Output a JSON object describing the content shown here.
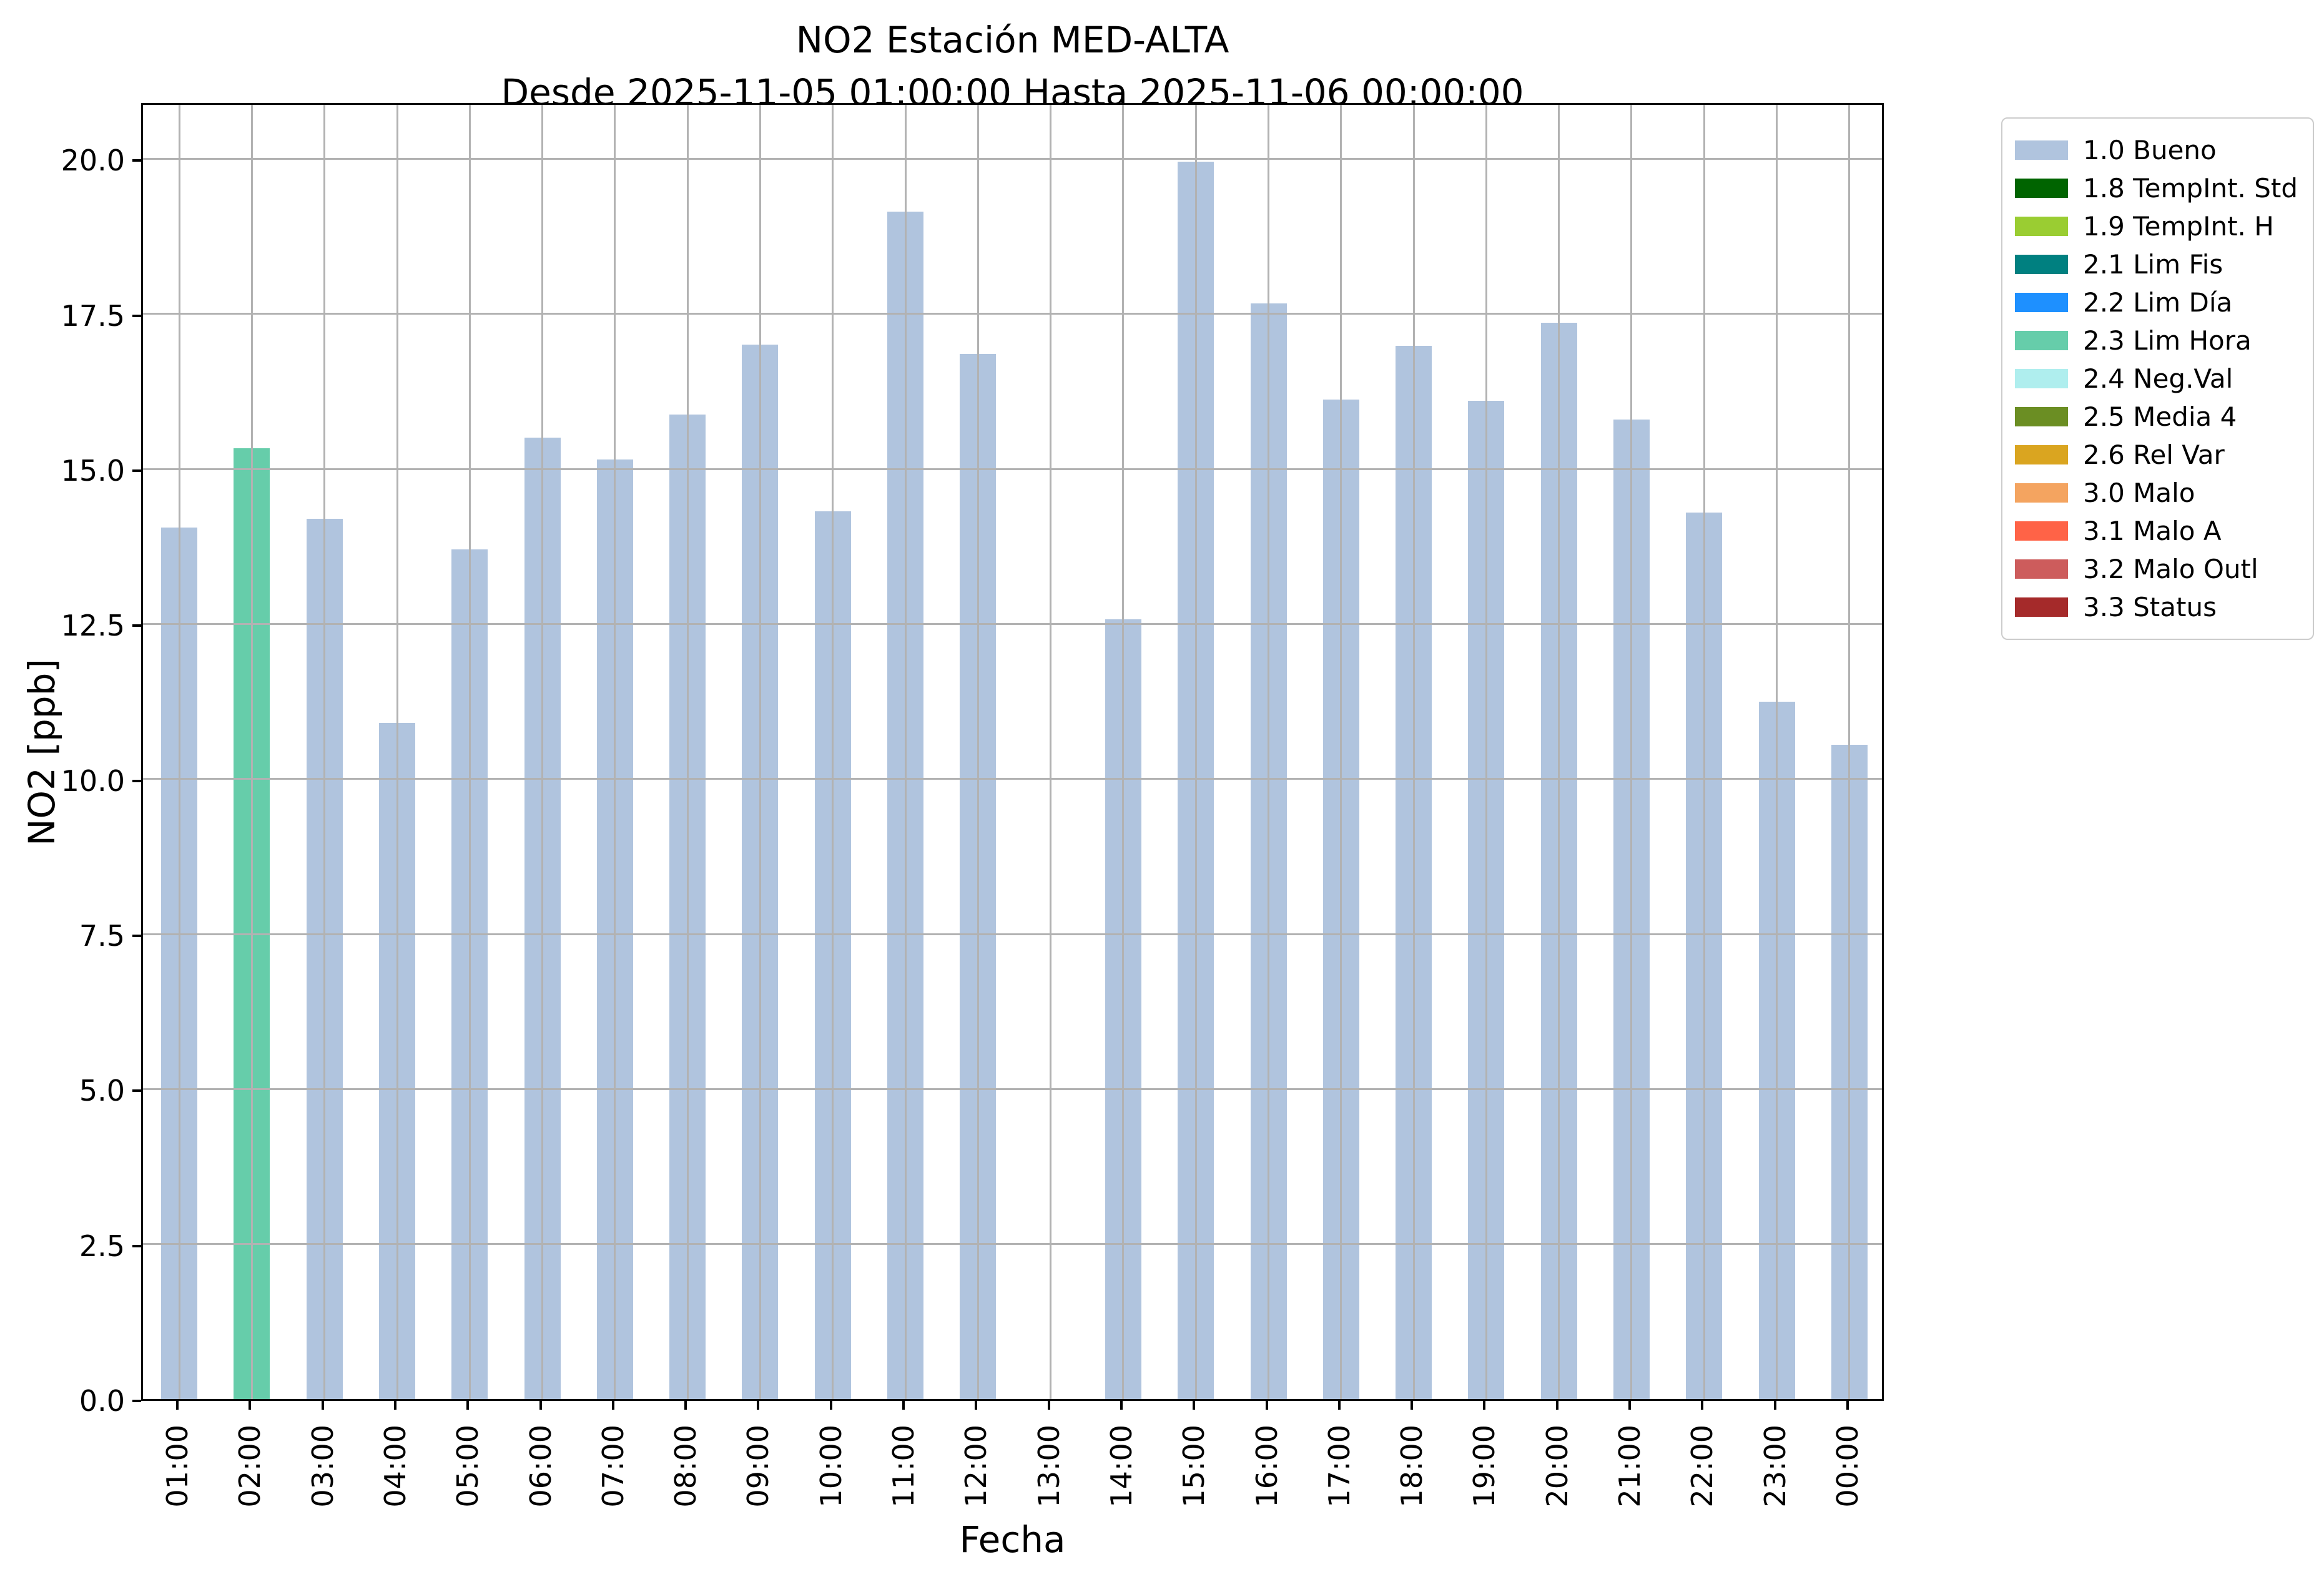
{
  "figure": {
    "title": "NO2 Estación MED-ALTA",
    "subtitle": "Desde 2025-11-05 01:00:00 Hasta 2025-11-06 00:00:00"
  },
  "axes": {
    "xlabel": "Fecha",
    "ylabel": "NO2 [ppb]",
    "ytick_labels": [
      "0.0",
      "2.5",
      "5.0",
      "7.5",
      "10.0",
      "12.5",
      "15.0",
      "17.5",
      "20.0"
    ]
  },
  "chart_data": {
    "type": "bar",
    "title": "NO2 Estación MED-ALTA",
    "subtitle": "Desde 2025-11-05 01:00:00 Hasta 2025-11-06 00:00:00",
    "xlabel": "Fecha",
    "ylabel": "NO2 [ppb]",
    "categories": [
      "01:00",
      "02:00",
      "03:00",
      "04:00",
      "05:00",
      "06:00",
      "07:00",
      "08:00",
      "09:00",
      "10:00",
      "11:00",
      "12:00",
      "13:00",
      "14:00",
      "15:00",
      "16:00",
      "17:00",
      "18:00",
      "19:00",
      "20:00",
      "21:00",
      "22:00",
      "23:00",
      "00:00"
    ],
    "values": [
      14.05,
      15.33,
      14.2,
      10.9,
      13.7,
      15.5,
      15.15,
      15.88,
      17.0,
      14.32,
      19.15,
      16.85,
      null,
      12.57,
      19.95,
      17.67,
      16.12,
      16.98,
      16.1,
      17.36,
      15.8,
      14.3,
      11.25,
      10.55
    ],
    "statuses": [
      "1.0",
      "2.3",
      "1.0",
      "1.0",
      "1.0",
      "1.0",
      "1.0",
      "1.0",
      "1.0",
      "1.0",
      "1.0",
      "1.0",
      null,
      "1.0",
      "1.0",
      "1.0",
      "1.0",
      "1.0",
      "1.0",
      "1.0",
      "1.0",
      "1.0",
      "1.0",
      "1.0"
    ],
    "yticks": [
      0,
      2.5,
      5.0,
      7.5,
      10.0,
      12.5,
      15.0,
      17.5,
      20.0
    ],
    "ylim": [
      0,
      20.93
    ],
    "bar_width_fraction": 0.5,
    "grid": true,
    "legend_position": "outside right"
  },
  "legend": {
    "items": [
      {
        "code": "1.0",
        "label": "1.0 Bueno",
        "color": "#b0c4de"
      },
      {
        "code": "1.8",
        "label": "1.8 TempInt. Std",
        "color": "#006400"
      },
      {
        "code": "1.9",
        "label": "1.9 TempInt. H",
        "color": "#9acd32"
      },
      {
        "code": "2.1",
        "label": "2.1 Lim Fis",
        "color": "#008080"
      },
      {
        "code": "2.2",
        "label": "2.2 Lim Día",
        "color": "#1e90ff"
      },
      {
        "code": "2.3",
        "label": "2.3 Lim Hora",
        "color": "#66cdaa"
      },
      {
        "code": "2.4",
        "label": "2.4 Neg.Val",
        "color": "#afeeee"
      },
      {
        "code": "2.5",
        "label": "2.5 Media 4",
        "color": "#6b8e23"
      },
      {
        "code": "2.6",
        "label": "2.6 Rel Var",
        "color": "#daa520"
      },
      {
        "code": "3.0",
        "label": "3.0 Malo",
        "color": "#f4a460"
      },
      {
        "code": "3.1",
        "label": "3.1 Malo A",
        "color": "#ff6347"
      },
      {
        "code": "3.2",
        "label": "3.2 Malo Outl",
        "color": "#cd5c5c"
      },
      {
        "code": "3.3",
        "label": "3.3 Status",
        "color": "#a52a2a"
      }
    ]
  },
  "colors": {
    "grid": "#b2b2b2",
    "spine": "#000000",
    "legend_border": "#cccccc",
    "background": "#ffffff"
  }
}
